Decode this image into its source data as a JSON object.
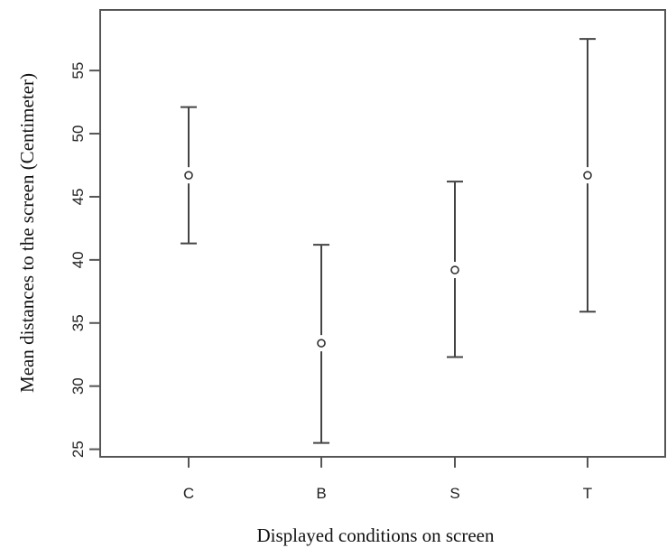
{
  "chart_data": {
    "type": "scatter",
    "title": "",
    "xlabel": "Displayed conditions on screen",
    "ylabel": "Mean distances to the screen (Centimeter)",
    "categories": [
      "C",
      "B",
      "S",
      "T"
    ],
    "series": [
      {
        "means": [
          46.7,
          33.4,
          39.2,
          46.7
        ],
        "lower": [
          41.3,
          25.5,
          32.3,
          35.9
        ],
        "upper": [
          52.1,
          41.2,
          46.2,
          57.5
        ]
      }
    ],
    "ylim": [
      24.4,
      59.8
    ],
    "yticks": [
      25,
      30,
      35,
      40,
      45,
      50,
      55
    ],
    "grid": false,
    "markers": "open-circle-with-error-bars"
  }
}
